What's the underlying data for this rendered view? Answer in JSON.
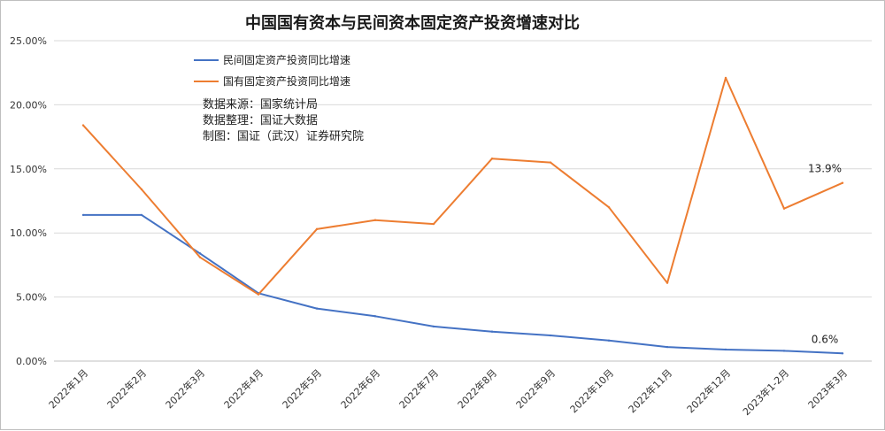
{
  "chart_data": {
    "type": "line",
    "title": "中国国有资本与民间资本固定资产投资增速对比",
    "xlabel": "",
    "ylabel": "",
    "ylim": [
      0,
      25
    ],
    "y_ticks": [
      "0.00%",
      "5.00%",
      "10.00%",
      "15.00%",
      "20.00%",
      "25.00%"
    ],
    "categories": [
      "2022年1月",
      "2022年2月",
      "2022年3月",
      "2022年4月",
      "2022年5月",
      "2022年6月",
      "2022年7月",
      "2022年8月",
      "2022年9月",
      "2022年10月",
      "2022年11月",
      "2022年12月",
      "2023年1-2月",
      "2023年3月"
    ],
    "grid": true,
    "legend_position": "top-left",
    "series": [
      {
        "name": "民间固定资产投资同比增速",
        "color": "#4472c4",
        "values": [
          11.4,
          11.4,
          8.4,
          5.3,
          4.1,
          3.5,
          2.7,
          2.3,
          2.0,
          1.6,
          1.1,
          0.9,
          0.8,
          0.6
        ],
        "end_label": "0.6%"
      },
      {
        "name": "国有固定资产投资同比增速",
        "color": "#ed7d31",
        "values": [
          18.4,
          13.4,
          8.1,
          5.2,
          10.3,
          11.0,
          10.7,
          15.8,
          15.5,
          12.0,
          6.1,
          22.1,
          11.9,
          13.9
        ],
        "end_label": "13.9%"
      }
    ],
    "notes": [
      "数据来源：国家统计局",
      "数据整理：国证大数据",
      "制图：国证（武汉）证券研究院"
    ]
  }
}
